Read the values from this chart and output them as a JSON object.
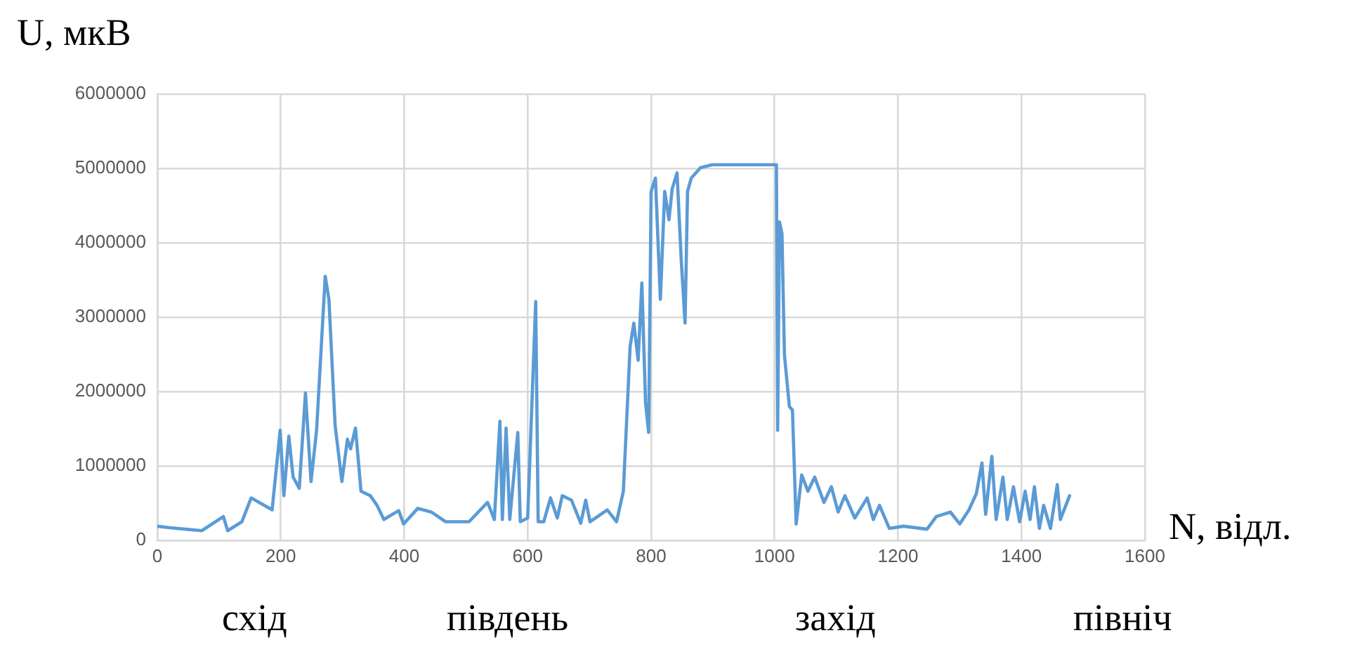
{
  "chart_data": {
    "type": "line",
    "xlabel": "N, відл.",
    "ylabel": "U, мкВ",
    "annotations": [
      "схід",
      "південь",
      "захід",
      "північ"
    ],
    "x": [
      0,
      20,
      72,
      107,
      114,
      137,
      152,
      186,
      199,
      205,
      213,
      220,
      230,
      240,
      249,
      258,
      272,
      278,
      288,
      299,
      308,
      313,
      321,
      330,
      345,
      356,
      367,
      391,
      399,
      422,
      444,
      467,
      505,
      535,
      546,
      555,
      559,
      565,
      571,
      584,
      588,
      600,
      613,
      617,
      626,
      637,
      648,
      656,
      671,
      686,
      694,
      701,
      729,
      744,
      755,
      766,
      772,
      779,
      785,
      791,
      796,
      800,
      807,
      815,
      822,
      829,
      834,
      842,
      849,
      855,
      859,
      865,
      880,
      899,
      1003,
      1005,
      1008,
      1012,
      1016,
      1024,
      1029,
      1035,
      1044,
      1054,
      1065,
      1080,
      1092,
      1103,
      1114,
      1130,
      1150,
      1160,
      1170,
      1186,
      1209,
      1247,
      1262,
      1285,
      1300,
      1315,
      1327,
      1336,
      1342,
      1352,
      1359,
      1370,
      1377,
      1387,
      1397,
      1406,
      1414,
      1421,
      1429,
      1436,
      1447,
      1458,
      1463,
      1478
    ],
    "values": [
      190000,
      170000,
      130000,
      320000,
      130000,
      250000,
      570000,
      410000,
      1480000,
      600000,
      1400000,
      850000,
      700000,
      1980000,
      790000,
      1480000,
      3550000,
      3240000,
      1550000,
      790000,
      1360000,
      1230000,
      1510000,
      660000,
      600000,
      470000,
      280000,
      400000,
      220000,
      430000,
      380000,
      250000,
      250000,
      510000,
      280000,
      1600000,
      280000,
      1510000,
      280000,
      1450000,
      250000,
      300000,
      3210000,
      250000,
      250000,
      570000,
      300000,
      600000,
      540000,
      230000,
      540000,
      250000,
      410000,
      250000,
      660000,
      2610000,
      2920000,
      2420000,
      3460000,
      1850000,
      1450000,
      4690000,
      4870000,
      3240000,
      4690000,
      4310000,
      4720000,
      4940000,
      3740000,
      2920000,
      4690000,
      4870000,
      5010000,
      5050000,
      5050000,
      1480000,
      4280000,
      4120000,
      2490000,
      1800000,
      1750000,
      220000,
      880000,
      660000,
      850000,
      510000,
      720000,
      380000,
      600000,
      300000,
      570000,
      280000,
      470000,
      160000,
      190000,
      150000,
      320000,
      380000,
      220000,
      410000,
      630000,
      1040000,
      350000,
      1130000,
      280000,
      850000,
      280000,
      720000,
      250000,
      660000,
      280000,
      720000,
      160000,
      470000,
      160000,
      750000,
      280000,
      600000
    ],
    "color": "#5b9bd5",
    "marker": "none",
    "line_style": "solid",
    "xlim": [
      0,
      1600
    ],
    "xticks": [
      0,
      200,
      400,
      600,
      800,
      1000,
      1200,
      1400,
      1600
    ],
    "ylim": [
      0,
      6000000
    ],
    "yticks": [
      0,
      1000000,
      2000000,
      3000000,
      4000000,
      5000000,
      6000000
    ],
    "grid": true,
    "legend": false
  }
}
